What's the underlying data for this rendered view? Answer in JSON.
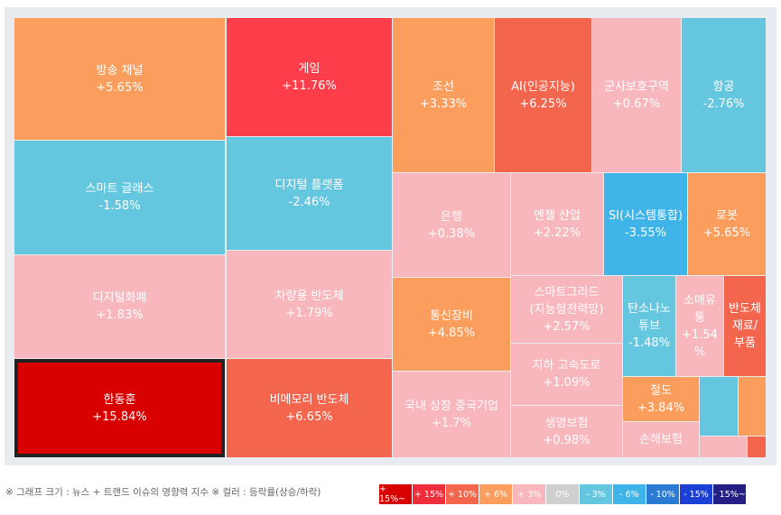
{
  "chart_data": {
    "type": "treemap",
    "value_note": "등락률(상승/하락)",
    "items": [
      {
        "name": "방송 채널",
        "change": "+5.65%",
        "color": "#fb9d5c"
      },
      {
        "name": "게임",
        "change": "+11.76%",
        "color": "#fd3d4a"
      },
      {
        "name": "조선",
        "change": "+3.33%",
        "color": "#fb9d5c"
      },
      {
        "name": "AI(인공지능)",
        "change": "+6.25%",
        "color": "#f3654d"
      },
      {
        "name": "군사보호구역",
        "change": "+0.67%",
        "color": "#f8b6bd"
      },
      {
        "name": "항공",
        "change": "-2.76%",
        "color": "#64c7df"
      },
      {
        "name": "스마트 글래스",
        "change": "-1.58%",
        "color": "#64c7df"
      },
      {
        "name": "디지털 플랫폼",
        "change": "-2.46%",
        "color": "#64c7df"
      },
      {
        "name": "은행",
        "change": "+0.38%",
        "color": "#f8b6bd"
      },
      {
        "name": "엔젤 산업",
        "change": "+2.22%",
        "color": "#f8b6bd"
      },
      {
        "name": "SI(시스템통합)",
        "change": "-3.55%",
        "color": "#3eb4e9"
      },
      {
        "name": "로봇",
        "change": "+5.65%",
        "color": "#fb9d5c"
      },
      {
        "name": "디지털화폐",
        "change": "+1.83%",
        "color": "#f8b6bd"
      },
      {
        "name": "차량용 반도체",
        "change": "+1.79%",
        "color": "#f8b6bd"
      },
      {
        "name": "통신장비",
        "change": "+4.85%",
        "color": "#fb9d5c"
      },
      {
        "name": "스마트그리드(지능형전력망)",
        "change": "+2.57%",
        "color": "#f8b6bd"
      },
      {
        "name": "탄소나노튜브",
        "change": "-1.48%",
        "color": "#64c7df"
      },
      {
        "name": "소매유통",
        "change": "+1.54%",
        "color": "#f8b6bd"
      },
      {
        "name": "반도체 재료/부품",
        "change": "",
        "color": "#f3654d"
      },
      {
        "name": "한동훈",
        "change": "+15.84%",
        "color": "#d90000"
      },
      {
        "name": "비메모리 반도체",
        "change": "+6.65%",
        "color": "#f3654d"
      },
      {
        "name": "국내 상장 중국기업",
        "change": "+1.7%",
        "color": "#f8b6bd"
      },
      {
        "name": "지하 고속도로",
        "change": "+1.09%",
        "color": "#f8b6bd"
      },
      {
        "name": "철도",
        "change": "+3.84%",
        "color": "#fb9d5c"
      },
      {
        "name": "생명보험",
        "change": "+0.98%",
        "color": "#f8b6bd"
      },
      {
        "name": "손해보험",
        "change": "",
        "color": "#f8b6bd"
      },
      {
        "name": "",
        "change": "",
        "color": "#64c7df"
      },
      {
        "name": "",
        "change": "",
        "color": "#fb9d5c"
      },
      {
        "name": "",
        "change": "",
        "color": "#f8b6bd"
      },
      {
        "name": "",
        "change": "",
        "color": "#f3654d"
      }
    ],
    "selected": "한동훈"
  },
  "footer": {
    "note": "※ 그래프 크기 : 뉴스 + 트랜드 이슈의 영향력 지수 ※ 컬러 : 등락률(상승/하락)"
  },
  "legend": [
    {
      "label": "+ 15%~",
      "color": "#d90000"
    },
    {
      "label": "+ 15%",
      "color": "#ee2e3b"
    },
    {
      "label": "+ 10%",
      "color": "#f3654d"
    },
    {
      "label": "+ 6%",
      "color": "#fb9d5c"
    },
    {
      "label": "+ 3%",
      "color": "#f8b6bd"
    },
    {
      "label": "0%",
      "color": "#cfcfcf"
    },
    {
      "label": "- 3%",
      "color": "#64c7df"
    },
    {
      "label": "- 6%",
      "color": "#3eb4e9"
    },
    {
      "label": "- 10%",
      "color": "#2b7bd4"
    },
    {
      "label": "- 15%",
      "color": "#1c3fd6"
    },
    {
      "label": "- 15%~",
      "color": "#241f84"
    }
  ]
}
